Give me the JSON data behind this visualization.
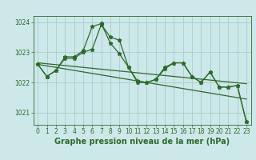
{
  "background_color": "#cde8e8",
  "grid_color": "#aacccc",
  "line_color": "#2d6a2d",
  "title": "Graphe pression niveau de la mer (hPa)",
  "ylim": [
    1020.6,
    1024.2
  ],
  "yticks": [
    1021,
    1022,
    1023,
    1024
  ],
  "xlim": [
    -0.5,
    23.5
  ],
  "xticks": [
    0,
    1,
    2,
    3,
    4,
    5,
    6,
    7,
    8,
    9,
    10,
    11,
    12,
    13,
    14,
    15,
    16,
    17,
    18,
    19,
    20,
    21,
    22,
    23
  ],
  "series1": [
    1022.6,
    1022.2,
    1022.4,
    1022.8,
    1022.8,
    1023.0,
    1023.1,
    1023.92,
    1023.5,
    1023.4,
    1022.5,
    1022.0,
    1022.0,
    1022.1,
    1022.45,
    1022.65,
    1022.65,
    1022.2,
    1022.0,
    1022.35,
    1021.85,
    1021.85,
    1021.9,
    1020.7
  ],
  "series2": [
    1022.6,
    1022.2,
    1022.4,
    1022.85,
    1022.85,
    1023.05,
    1023.85,
    1023.95,
    1023.3,
    1022.95,
    1022.5,
    1022.05,
    1022.0,
    1022.1,
    1022.5,
    1022.65,
    1022.65,
    1022.2,
    1022.0,
    1022.35,
    1021.85,
    1021.85,
    1021.9,
    1020.7
  ],
  "trend1": [
    1022.65,
    1022.62,
    1022.59,
    1022.56,
    1022.53,
    1022.5,
    1022.47,
    1022.44,
    1022.41,
    1022.38,
    1022.35,
    1022.32,
    1022.29,
    1022.26,
    1022.23,
    1022.2,
    1022.17,
    1022.14,
    1022.11,
    1022.08,
    1022.05,
    1022.02,
    1021.99,
    1021.96
  ],
  "trend2": [
    1022.6,
    1022.55,
    1022.5,
    1022.45,
    1022.4,
    1022.35,
    1022.3,
    1022.25,
    1022.2,
    1022.15,
    1022.1,
    1022.05,
    1022.0,
    1021.95,
    1021.9,
    1021.85,
    1021.8,
    1021.75,
    1021.7,
    1021.65,
    1021.6,
    1021.55,
    1021.5,
    1021.45
  ],
  "marker": "*",
  "markersize": 3.5,
  "linewidth": 0.9,
  "title_fontsize": 7.0,
  "tick_fontsize": 5.5
}
